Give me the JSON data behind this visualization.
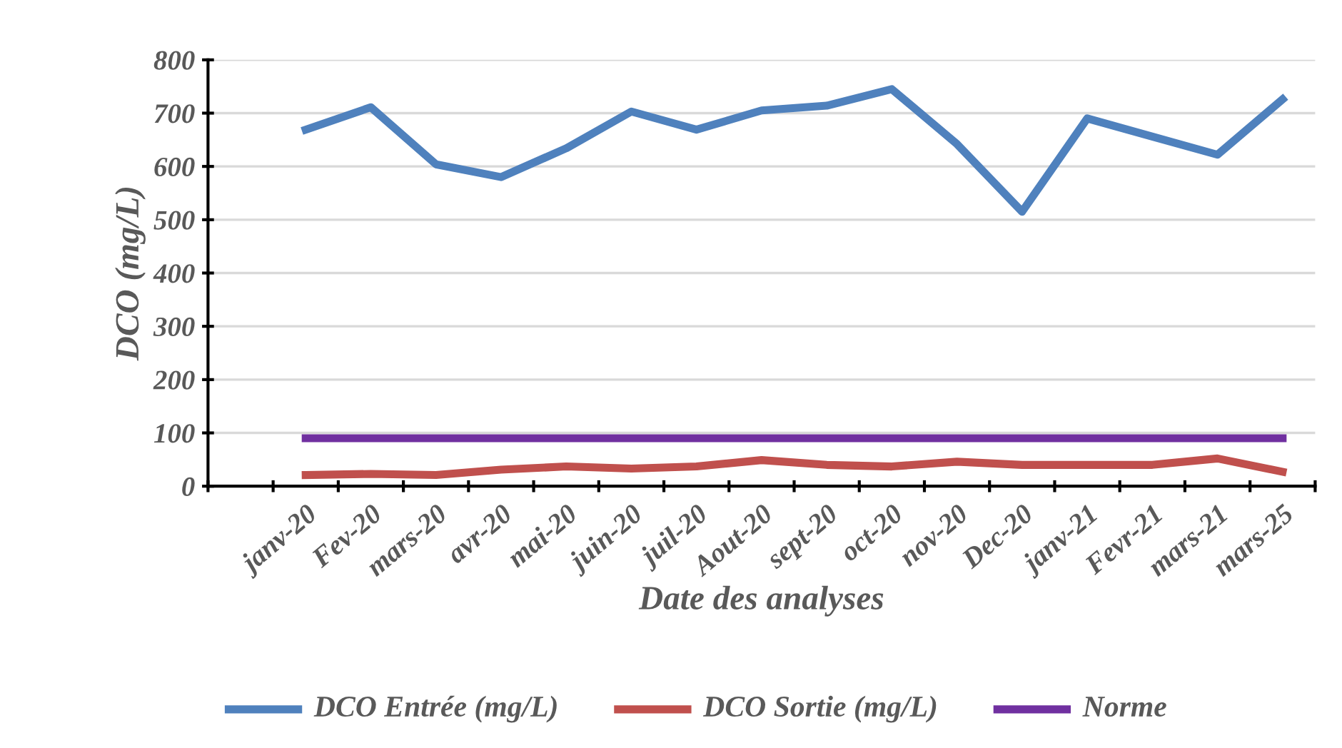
{
  "chart_data": {
    "type": "line",
    "xlabel": "Date des analyses",
    "ylabel": "DCO (mg/L)",
    "categories": [
      null,
      "janv-20",
      "Fev-20",
      "mars-20",
      "avr-20",
      "mai-20",
      "juin-20",
      "juil-20",
      "Aout-20",
      "sept-20",
      "oct-20",
      "nov-20",
      "Dec-20",
      "janv-21",
      "Fevr-21",
      "mars-21",
      "mars-25"
    ],
    "series": [
      {
        "name": "DCO Entrée (mg/L)",
        "color": "#4f81bd",
        "values": [
          null,
          669,
          711,
          604,
          580,
          634,
          703,
          669,
          705,
          714,
          745,
          642,
          515,
          690,
          656,
          622,
          726
        ]
      },
      {
        "name": "DCO Sortie (mg/L)",
        "color": "#c0504d",
        "values": [
          null,
          21,
          23,
          21,
          31,
          37,
          33,
          37,
          49,
          40,
          37,
          46,
          40,
          40,
          40,
          52,
          27
        ]
      },
      {
        "name": "Norme",
        "color": "#7030a0",
        "values": [
          null,
          90,
          90,
          90,
          90,
          90,
          90,
          90,
          90,
          90,
          90,
          90,
          90,
          90,
          90,
          90,
          90
        ]
      }
    ],
    "ylim": [
      0,
      800
    ],
    "yticks": [
      0,
      100,
      200,
      300,
      400,
      500,
      600,
      700,
      800
    ],
    "grid": "y",
    "legend": "bottom",
    "marker": "none",
    "line_style": "solid"
  }
}
